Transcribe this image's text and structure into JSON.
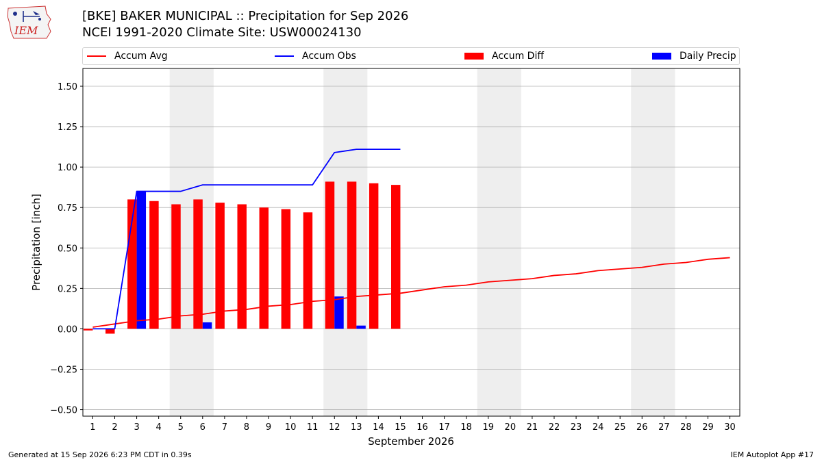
{
  "header": {
    "title_line1": "[BKE] BAKER MUNICIPAL :: Precipitation for Sep 2026",
    "title_line2": "NCEI 1991-2020 Climate Site: USW00024130",
    "logo_text": "IEM"
  },
  "footer": {
    "generated": "Generated at 15 Sep 2026 6:23 PM CDT in 0.39s",
    "app": "IEM Autoplot App #17"
  },
  "colors": {
    "avg": "#ff0000",
    "obs": "#0000ff",
    "diff": "#ff0000",
    "daily": "#0000ff",
    "weekend_band": "#eeeeee",
    "grid": "#b0b0b0"
  },
  "chart_data": {
    "type": "bar",
    "xlabel": "September 2026",
    "ylabel": "Precipitation [inch]",
    "ylim": [
      -0.54,
      1.61
    ],
    "yticks": [
      -0.5,
      -0.25,
      0.0,
      0.25,
      0.5,
      0.75,
      1.0,
      1.25,
      1.5
    ],
    "ytick_labels": [
      "−0.50",
      "−0.25",
      "0.00",
      "0.25",
      "0.50",
      "0.75",
      "1.00",
      "1.25",
      "1.50"
    ],
    "days": [
      1,
      2,
      3,
      4,
      5,
      6,
      7,
      8,
      9,
      10,
      11,
      12,
      13,
      14,
      15,
      16,
      17,
      18,
      19,
      20,
      21,
      22,
      23,
      24,
      25,
      26,
      27,
      28,
      29,
      30
    ],
    "weekend_bands": [
      [
        5,
        6
      ],
      [
        12,
        13
      ],
      [
        19,
        20
      ],
      [
        26,
        27
      ]
    ],
    "grid": "horizontal",
    "legend_position": "top",
    "series": [
      {
        "name": "Accum Avg",
        "kind": "line",
        "x": [
          1,
          2,
          3,
          4,
          5,
          6,
          7,
          8,
          9,
          10,
          11,
          12,
          13,
          14,
          15,
          16,
          17,
          18,
          19,
          20,
          21,
          22,
          23,
          24,
          25,
          26,
          27,
          28,
          29,
          30
        ],
        "values": [
          0.01,
          0.03,
          0.05,
          0.06,
          0.08,
          0.09,
          0.11,
          0.12,
          0.14,
          0.15,
          0.17,
          0.18,
          0.2,
          0.21,
          0.22,
          0.24,
          0.26,
          0.27,
          0.29,
          0.3,
          0.31,
          0.33,
          0.34,
          0.36,
          0.37,
          0.38,
          0.4,
          0.41,
          0.43,
          0.44
        ]
      },
      {
        "name": "Accum Obs",
        "kind": "line",
        "x": [
          1,
          2,
          3,
          4,
          5,
          6,
          7,
          8,
          9,
          10,
          11,
          12,
          13,
          14,
          15
        ],
        "values": [
          0.0,
          0.0,
          0.85,
          0.85,
          0.85,
          0.89,
          0.89,
          0.89,
          0.89,
          0.89,
          0.89,
          1.09,
          1.11,
          1.11,
          1.11
        ]
      },
      {
        "name": "Accum Diff",
        "kind": "bar",
        "x": [
          1,
          2,
          3,
          4,
          5,
          6,
          7,
          8,
          9,
          10,
          11,
          12,
          13,
          14,
          15
        ],
        "values": [
          -0.01,
          -0.03,
          0.8,
          0.79,
          0.77,
          0.8,
          0.78,
          0.77,
          0.75,
          0.74,
          0.72,
          0.91,
          0.91,
          0.9,
          0.89
        ]
      },
      {
        "name": "Daily Precip",
        "kind": "bar",
        "x": [
          1,
          2,
          3,
          4,
          5,
          6,
          7,
          8,
          9,
          10,
          11,
          12,
          13,
          14,
          15
        ],
        "values": [
          0.0,
          0.0,
          0.85,
          0.0,
          0.0,
          0.04,
          0.0,
          0.0,
          0.0,
          0.0,
          0.0,
          0.2,
          0.02,
          0.0,
          0.0
        ]
      }
    ]
  }
}
